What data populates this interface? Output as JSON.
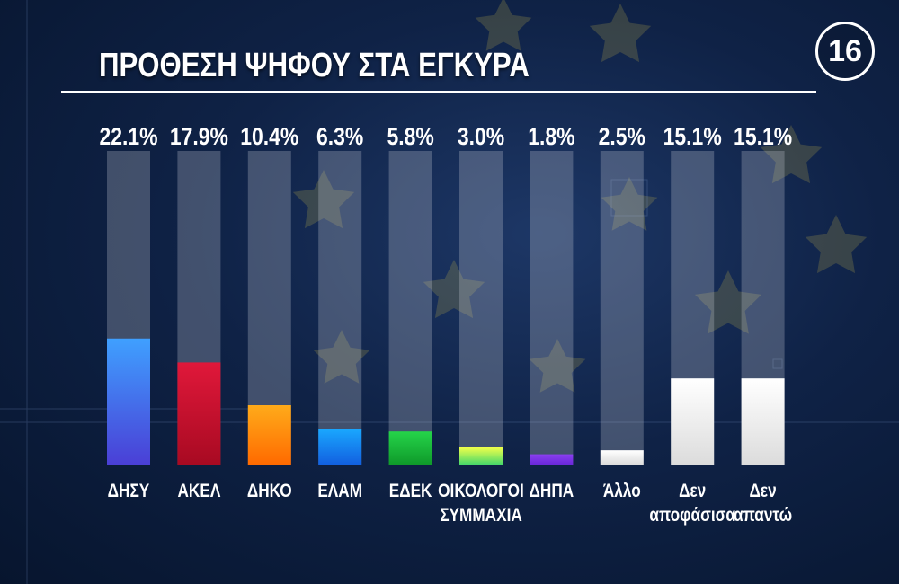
{
  "header": {
    "title": "ΠΡΟΘΕΣΗ ΨΗΦΟΥ ΣΤΑ ΕΓΚΥΡΑ",
    "badge": "16"
  },
  "chart_data": {
    "type": "bar",
    "title": "ΠΡΟΘΕΣΗ ΨΗΦΟΥ ΣΤΑ ΕΓΚΥΡΑ",
    "categories": [
      "ΔΗΣΥ",
      "ΑΚΕΛ",
      "ΔΗΚΟ",
      "ΕΛΑΜ",
      "ΕΔΕΚ",
      "ΟΙΚΟΛΟΓΟΙ ΣΥΜΜΑΧΙΑ",
      "ΔΗΠΑ",
      "Άλλο",
      "Δεν αποφάσισα",
      "Δεν απαντώ"
    ],
    "category_lines": [
      [
        "ΔΗΣΥ"
      ],
      [
        "ΑΚΕΛ"
      ],
      [
        "ΔΗΚΟ"
      ],
      [
        "ΕΛΑΜ"
      ],
      [
        "ΕΔΕΚ"
      ],
      [
        "ΟΙΚΟΛΟΓΟΙ",
        "ΣΥΜΜΑΧΙΑ"
      ],
      [
        "ΔΗΠΑ"
      ],
      [
        "Άλλο"
      ],
      [
        "Δεν",
        "αποφάσισα"
      ],
      [
        "Δεν",
        "απαντώ"
      ]
    ],
    "values": [
      22.1,
      17.9,
      10.4,
      6.3,
      5.8,
      3.0,
      1.8,
      2.5,
      15.1,
      15.1
    ],
    "value_labels": [
      "22.1%",
      "17.9%",
      "10.4%",
      "6.3%",
      "5.8%",
      "3.0%",
      "1.8%",
      "2.5%",
      "15.1%",
      "15.1%"
    ],
    "ylim": [
      0,
      55
    ],
    "xlabel": "",
    "ylabel": "",
    "grid": false,
    "colors": [
      [
        "#3fa0ff",
        "#4a3fd6"
      ],
      [
        "#e0183a",
        "#a80a22"
      ],
      [
        "#ffab1a",
        "#ff6a00"
      ],
      [
        "#1aa8ff",
        "#1260e0"
      ],
      [
        "#25d44a",
        "#0f9a2a"
      ],
      [
        "#f2ff4a",
        "#46d86a"
      ],
      [
        "#8a3ff0",
        "#6a28d8"
      ],
      [
        "#ffffff",
        "#dcdcdc"
      ],
      [
        "#ffffff",
        "#dcdcdc"
      ],
      [
        "#ffffff",
        "#dcdcdc"
      ]
    ],
    "track_color": "#c8cdd8"
  }
}
